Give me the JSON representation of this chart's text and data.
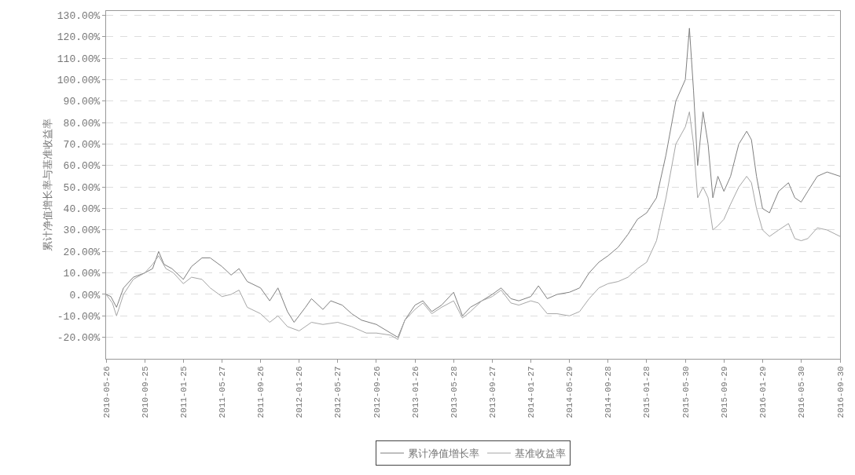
{
  "chart_data": {
    "type": "line",
    "ylabel": "累计净值增长率与基准收益率",
    "xlim": [
      "2010-05-26",
      "2016-09-30"
    ],
    "xticks": [
      {
        "value": "2010-05-26",
        "label": "2010-05-26"
      },
      {
        "value": "2010-09-25",
        "label": "2010-09-25"
      },
      {
        "value": "2011-01-25",
        "label": "2011-01-25"
      },
      {
        "value": "2011-05-27",
        "label": "2011-05-27"
      },
      {
        "value": "2011-09-26",
        "label": "2011-09-26"
      },
      {
        "value": "2012-01-26",
        "label": "2012-01-26"
      },
      {
        "value": "2012-05-27",
        "label": "2012-05-27"
      },
      {
        "value": "2012-09-26",
        "label": "2012-09-26"
      },
      {
        "value": "2013-01-26",
        "label": "2013-01-26"
      },
      {
        "value": "2013-05-28",
        "label": "2013-05-28"
      },
      {
        "value": "2013-09-27",
        "label": "2013-09-27"
      },
      {
        "value": "2014-01-27",
        "label": "2014-01-27"
      },
      {
        "value": "2014-05-29",
        "label": "2014-05-29"
      },
      {
        "value": "2014-09-28",
        "label": "2014-09-28"
      },
      {
        "value": "2015-01-28",
        "label": "2015-01-28"
      },
      {
        "value": "2015-05-30",
        "label": "2015-05-30"
      },
      {
        "value": "2015-09-29",
        "label": "2015-09-29"
      },
      {
        "value": "2016-01-29",
        "label": "2016-01-29"
      },
      {
        "value": "2016-05-30",
        "label": "2016-05-30"
      },
      {
        "value": "2016-09-30",
        "label": "2016-09-30"
      }
    ],
    "ylim": [
      -30,
      132
    ],
    "yticks": [
      {
        "value": -20,
        "label": "-20.00%"
      },
      {
        "value": -10,
        "label": "-10.00%"
      },
      {
        "value": 0,
        "label": "0.00%"
      },
      {
        "value": 10,
        "label": "10.00%"
      },
      {
        "value": 20,
        "label": "20.00%"
      },
      {
        "value": 30,
        "label": "30.00%"
      },
      {
        "value": 40,
        "label": "40.00%"
      },
      {
        "value": 50,
        "label": "50.00%"
      },
      {
        "value": 60,
        "label": "60.00%"
      },
      {
        "value": 70,
        "label": "70.00%"
      },
      {
        "value": 80,
        "label": "80.00%"
      },
      {
        "value": 90,
        "label": "90.00%"
      },
      {
        "value": 100,
        "label": "100.00%"
      },
      {
        "value": 110,
        "label": "110.00%"
      },
      {
        "value": 120,
        "label": "120.00%"
      },
      {
        "value": 130,
        "label": "130.00%"
      }
    ],
    "grid": "y",
    "legend": "bottom",
    "series": [
      {
        "name": "累计净值增长率",
        "color": "#7f7f7f",
        "x": [
          "2010-05-26",
          "2010-06-10",
          "2010-06-28",
          "2010-07-20",
          "2010-08-20",
          "2010-09-25",
          "2010-10-20",
          "2010-11-08",
          "2010-11-25",
          "2010-12-20",
          "2011-01-25",
          "2011-02-20",
          "2011-03-25",
          "2011-04-20",
          "2011-05-27",
          "2011-06-25",
          "2011-07-20",
          "2011-08-15",
          "2011-09-26",
          "2011-10-25",
          "2011-11-20",
          "2011-12-20",
          "2012-01-10",
          "2012-02-15",
          "2012-03-05",
          "2012-04-10",
          "2012-05-05",
          "2012-06-10",
          "2012-07-10",
          "2012-08-10",
          "2012-09-26",
          "2012-11-10",
          "2012-12-03",
          "2012-12-25",
          "2013-01-26",
          "2013-02-20",
          "2013-03-20",
          "2013-04-20",
          "2013-05-28",
          "2013-06-25",
          "2013-07-20",
          "2013-08-25",
          "2013-09-27",
          "2013-10-25",
          "2013-11-25",
          "2013-12-20",
          "2014-01-27",
          "2014-02-20",
          "2014-03-20",
          "2014-04-20",
          "2014-05-29",
          "2014-06-30",
          "2014-07-30",
          "2014-08-30",
          "2014-09-28",
          "2014-10-30",
          "2014-11-30",
          "2014-12-30",
          "2015-01-28",
          "2015-02-28",
          "2015-03-30",
          "2015-04-30",
          "2015-05-30",
          "2015-06-12",
          "2015-06-25",
          "2015-07-08",
          "2015-07-25",
          "2015-08-10",
          "2015-08-25",
          "2015-09-10",
          "2015-09-29",
          "2015-10-20",
          "2015-11-15",
          "2015-12-10",
          "2015-12-25",
          "2016-01-10",
          "2016-01-29",
          "2016-02-20",
          "2016-03-20",
          "2016-04-20",
          "2016-05-10",
          "2016-05-30",
          "2016-06-20",
          "2016-07-20",
          "2016-08-20",
          "2016-09-30"
        ],
        "values": [
          0,
          -1,
          -6,
          3,
          8,
          10,
          12,
          20,
          14,
          12,
          7,
          13,
          17,
          17,
          13,
          9,
          12,
          6,
          3,
          -3,
          3,
          -8,
          -13,
          -6,
          -2,
          -7,
          -3,
          -5,
          -9,
          -12,
          -14,
          -18,
          -20,
          -12,
          -5,
          -3,
          -8,
          -5,
          1,
          -10,
          -6,
          -3,
          0,
          3,
          -2,
          -3,
          -1,
          4,
          -2,
          0,
          1,
          3,
          10,
          15,
          18,
          22,
          28,
          35,
          38,
          45,
          65,
          90,
          100,
          124,
          95,
          60,
          85,
          70,
          45,
          55,
          48,
          55,
          70,
          76,
          72,
          55,
          40,
          38,
          48,
          52,
          45,
          43,
          48,
          55,
          57,
          55
        ]
      },
      {
        "name": "基准收益率",
        "color": "#a6a6a6",
        "x": [
          "2010-05-26",
          "2010-06-15",
          "2010-06-28",
          "2010-07-20",
          "2010-08-20",
          "2010-09-25",
          "2010-10-20",
          "2010-11-08",
          "2010-12-01",
          "2010-12-25",
          "2011-01-25",
          "2011-02-20",
          "2011-03-25",
          "2011-04-20",
          "2011-05-27",
          "2011-06-25",
          "2011-07-20",
          "2011-08-15",
          "2011-09-26",
          "2011-10-25",
          "2011-11-20",
          "2011-12-20",
          "2012-01-26",
          "2012-03-05",
          "2012-04-10",
          "2012-05-27",
          "2012-07-10",
          "2012-08-25",
          "2012-09-26",
          "2012-11-10",
          "2012-12-03",
          "2012-12-25",
          "2013-01-26",
          "2013-02-20",
          "2013-03-20",
          "2013-04-20",
          "2013-05-28",
          "2013-06-25",
          "2013-07-20",
          "2013-08-25",
          "2013-09-27",
          "2013-10-25",
          "2013-11-25",
          "2013-12-20",
          "2014-01-27",
          "2014-02-20",
          "2014-03-20",
          "2014-04-20",
          "2014-05-29",
          "2014-06-30",
          "2014-07-30",
          "2014-08-30",
          "2014-09-28",
          "2014-10-30",
          "2014-11-30",
          "2014-12-30",
          "2015-01-28",
          "2015-02-28",
          "2015-03-30",
          "2015-04-30",
          "2015-05-30",
          "2015-06-12",
          "2015-06-25",
          "2015-07-08",
          "2015-07-25",
          "2015-08-10",
          "2015-08-25",
          "2015-09-10",
          "2015-09-29",
          "2015-10-20",
          "2015-11-15",
          "2015-12-10",
          "2015-12-25",
          "2016-01-10",
          "2016-01-29",
          "2016-02-20",
          "2016-03-20",
          "2016-04-20",
          "2016-05-10",
          "2016-05-30",
          "2016-06-20",
          "2016-07-20",
          "2016-08-20",
          "2016-09-30"
        ],
        "values": [
          0,
          -4,
          -10,
          0,
          7,
          10,
          14,
          18,
          12,
          10,
          5,
          8,
          7,
          3,
          -1,
          0,
          2,
          -6,
          -9,
          -13,
          -10,
          -15,
          -17,
          -13,
          -14,
          -13,
          -15,
          -18,
          -18,
          -19,
          -21,
          -12,
          -7,
          -4,
          -9,
          -6,
          -3,
          -11,
          -8,
          -3,
          -1,
          2,
          -4,
          -5,
          -3,
          -4,
          -9,
          -9,
          -10,
          -8,
          -2,
          3,
          5,
          6,
          8,
          12,
          15,
          25,
          45,
          70,
          78,
          85,
          70,
          45,
          50,
          45,
          30,
          32,
          35,
          42,
          50,
          55,
          52,
          40,
          30,
          27,
          30,
          33,
          26,
          25,
          26,
          31,
          30,
          27
        ]
      }
    ]
  }
}
